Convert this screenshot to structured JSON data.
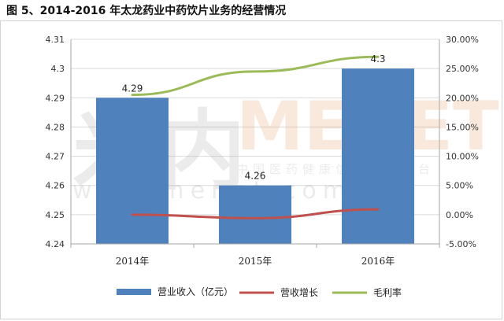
{
  "title": "图 5、2014-2016 年太龙药业中药饮片业务的经营情况",
  "colors": {
    "bar": "#4f81bd",
    "growth": "#c0504d",
    "margin": "#9bbb59",
    "grid": "#d9d9d9",
    "axis": "#a6a6a6"
  },
  "chart_data": {
    "type": "bar",
    "categories": [
      "2014年",
      "2015年",
      "2016年"
    ],
    "series": [
      {
        "name": "营业收入（亿元）",
        "type": "bar",
        "axis": "left",
        "values": [
          4.29,
          4.26,
          4.3
        ],
        "labels": [
          "4.29",
          "4.26",
          "4.3"
        ]
      },
      {
        "name": "营收增长",
        "type": "line",
        "axis": "right",
        "values": [
          0.0,
          -0.006,
          0.009
        ]
      },
      {
        "name": "毛利率",
        "type": "line",
        "axis": "right",
        "values": [
          0.205,
          0.245,
          0.27
        ]
      }
    ],
    "left_axis": {
      "ylim": [
        4.24,
        4.31
      ],
      "ticks": [
        "4.24",
        "4.25",
        "4.26",
        "4.27",
        "4.28",
        "4.29",
        "4.3",
        "4.31"
      ]
    },
    "right_axis": {
      "ylim": [
        -0.05,
        0.3
      ],
      "ticks": [
        "-5.00%",
        "0.00%",
        "5.00%",
        "10.00%",
        "15.00%",
        "20.00%",
        "25.00%",
        "30.00%"
      ]
    },
    "grid": true,
    "legend": "bottom",
    "watermark": [
      "米内",
      "MENET",
      "中国医药健康信息第一平台",
      "www.menet.com.cn"
    ]
  }
}
